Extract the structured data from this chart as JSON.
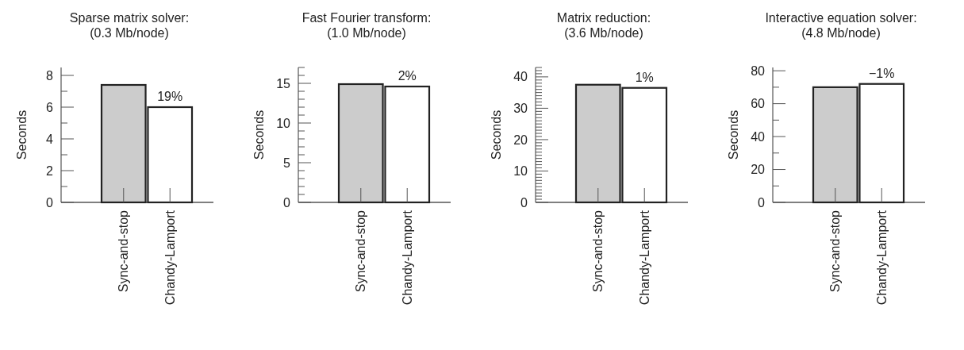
{
  "chart_data": [
    {
      "type": "bar",
      "title": "Sparse matrix solver:",
      "subtitle": "(0.3 Mb/node)",
      "ylabel": "Seconds",
      "categories": [
        "Sync-and-stop",
        "Chandy-Lamport"
      ],
      "values": [
        7.4,
        6.0
      ],
      "colors": [
        "#cccccc",
        "#ffffff"
      ],
      "ylim": [
        0,
        8.5
      ],
      "yticks": [
        0,
        {
          "value": 1,
          "label": null
        },
        2,
        {
          "value": 3,
          "label": null
        },
        4,
        {
          "value": 5,
          "label": null
        },
        6,
        {
          "value": 7,
          "label": null
        },
        8
      ],
      "annotations": [
        {
          "text": "19%",
          "x": "Chandy-Lamport",
          "y": 6.0
        }
      ],
      "grid": false
    },
    {
      "type": "bar",
      "title": "Fast Fourier transform:",
      "subtitle": "(1.0 Mb/node)",
      "ylabel": "Seconds",
      "categories": [
        "Sync-and-stop",
        "Chandy-Lamport"
      ],
      "values": [
        14.9,
        14.6
      ],
      "colors": [
        "#cccccc",
        "#ffffff"
      ],
      "ylim": [
        0,
        17
      ],
      "yticks": [
        0,
        {
          "value": 1,
          "label": null
        },
        {
          "value": 2,
          "label": null
        },
        {
          "value": 3,
          "label": null
        },
        {
          "value": 4,
          "label": null
        },
        5,
        {
          "value": 6,
          "label": null
        },
        {
          "value": 7,
          "label": null
        },
        {
          "value": 8,
          "label": null
        },
        {
          "value": 9,
          "label": null
        },
        10,
        {
          "value": 11,
          "label": null
        },
        {
          "value": 12,
          "label": null
        },
        {
          "value": 13,
          "label": null
        },
        {
          "value": 14,
          "label": null
        },
        15,
        {
          "value": 16,
          "label": null
        },
        {
          "value": 17,
          "label": null
        }
      ],
      "annotations": [
        {
          "text": "2%",
          "x": "Chandy-Lamport",
          "y": 14.6
        }
      ],
      "grid": false
    },
    {
      "type": "bar",
      "title": "Matrix reduction:",
      "subtitle": "(3.6 Mb/node)",
      "ylabel": "Seconds",
      "categories": [
        "Sync-and-stop",
        "Chandy-Lamport"
      ],
      "values": [
        37.5,
        36.5
      ],
      "colors": [
        "#cccccc",
        "#ffffff"
      ],
      "ylim": [
        0,
        43
      ],
      "yticks": [
        0,
        {
          "value": 1,
          "label": null
        },
        {
          "value": 2,
          "label": null
        },
        {
          "value": 3,
          "label": null
        },
        {
          "value": 4,
          "label": null
        },
        {
          "value": 5,
          "label": null
        },
        {
          "value": 6,
          "label": null
        },
        {
          "value": 7,
          "label": null
        },
        {
          "value": 8,
          "label": null
        },
        {
          "value": 9,
          "label": null
        },
        10,
        {
          "value": 11,
          "label": null
        },
        {
          "value": 12,
          "label": null
        },
        {
          "value": 13,
          "label": null
        },
        {
          "value": 14,
          "label": null
        },
        {
          "value": 15,
          "label": null
        },
        {
          "value": 16,
          "label": null
        },
        {
          "value": 17,
          "label": null
        },
        {
          "value": 18,
          "label": null
        },
        {
          "value": 19,
          "label": null
        },
        20,
        {
          "value": 21,
          "label": null
        },
        {
          "value": 22,
          "label": null
        },
        {
          "value": 23,
          "label": null
        },
        {
          "value": 24,
          "label": null
        },
        {
          "value": 25,
          "label": null
        },
        {
          "value": 26,
          "label": null
        },
        {
          "value": 27,
          "label": null
        },
        {
          "value": 28,
          "label": null
        },
        {
          "value": 29,
          "label": null
        },
        30,
        {
          "value": 31,
          "label": null
        },
        {
          "value": 32,
          "label": null
        },
        {
          "value": 33,
          "label": null
        },
        {
          "value": 34,
          "label": null
        },
        {
          "value": 35,
          "label": null
        },
        {
          "value": 36,
          "label": null
        },
        {
          "value": 37,
          "label": null
        },
        {
          "value": 38,
          "label": null
        },
        {
          "value": 39,
          "label": null
        },
        40,
        {
          "value": 41,
          "label": null
        },
        {
          "value": 42,
          "label": null
        },
        {
          "value": 43,
          "label": null
        }
      ],
      "annotations": [
        {
          "text": "1%",
          "x": "Chandy-Lamport",
          "y": 36.5
        }
      ],
      "grid": false
    },
    {
      "type": "bar",
      "title": "Interactive equation solver:",
      "subtitle": "(4.8 Mb/node)",
      "ylabel": "Seconds",
      "categories": [
        "Sync-and-stop",
        "Chandy-Lamport"
      ],
      "values": [
        70,
        72
      ],
      "colors": [
        "#cccccc",
        "#ffffff"
      ],
      "ylim": [
        0,
        82
      ],
      "yticks": [
        0,
        {
          "value": 10,
          "label": null
        },
        20,
        {
          "value": 30,
          "label": null
        },
        40,
        {
          "value": 50,
          "label": null
        },
        60,
        {
          "value": 70,
          "label": null
        },
        80
      ],
      "annotations": [
        {
          "text": "−1%",
          "x": "Chandy-Lamport",
          "y": 72
        }
      ],
      "grid": false
    }
  ]
}
